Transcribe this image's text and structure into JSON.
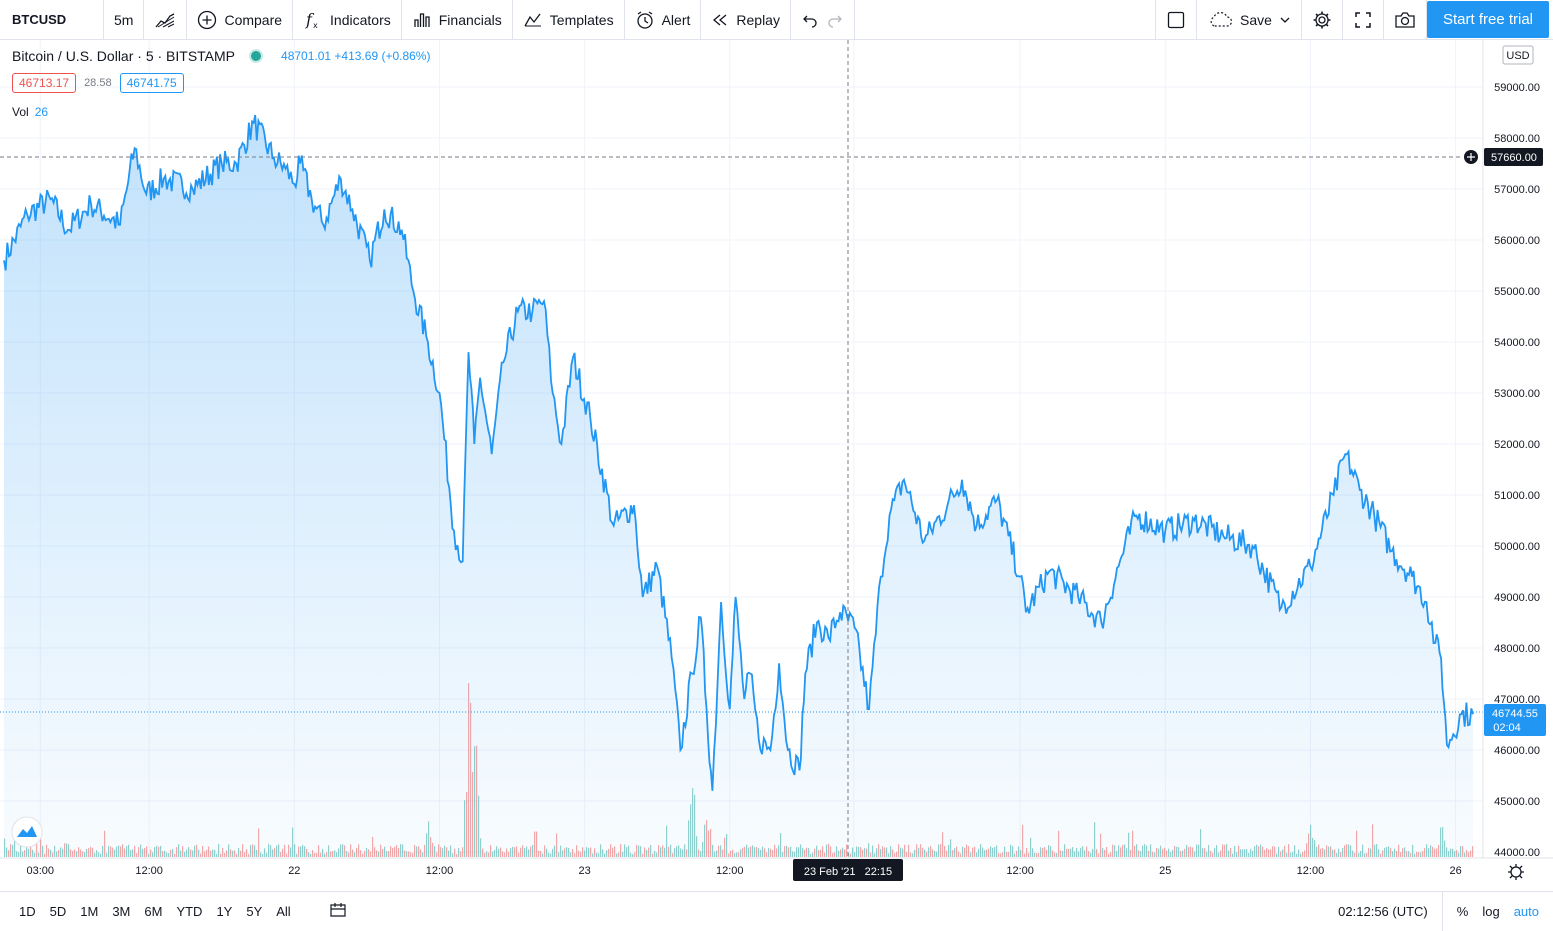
{
  "toolbar": {
    "symbol": "BTCUSD",
    "interval": "5m",
    "compare_label": "Compare",
    "indicators_label": "Indicators",
    "financials_label": "Financials",
    "templates_label": "Templates",
    "alert_label": "Alert",
    "replay_label": "Replay",
    "save_label": "Save",
    "trial_label": "Start free trial"
  },
  "legend": {
    "title": "Bitcoin / U.S. Dollar · 5 · BITSTAMP",
    "last_quote": "48701.01 +413.69 (+0.86%)",
    "bid": "46713.17",
    "spread": "28.58",
    "ask": "46741.75",
    "vol_label": "Vol",
    "vol_value": "26"
  },
  "price_axis": {
    "currency": "USD",
    "crosshair_price": "57660.00",
    "last_price": "46744.55",
    "countdown": "02:04"
  },
  "time_axis": {
    "crosshair_time": "23 Feb '21   22:15"
  },
  "bottom": {
    "ranges": [
      "1D",
      "5D",
      "1M",
      "3M",
      "6M",
      "YTD",
      "1Y",
      "5Y",
      "All"
    ],
    "clock": "02:12:56 (UTC)",
    "percent_label": "%",
    "log_label": "log",
    "auto_label": "auto"
  },
  "colors": {
    "line": "#2196f3",
    "vol_up": "#26a69a",
    "vol_down": "#ef5350",
    "accent": "#2196f3"
  },
  "chart_data": {
    "type": "area",
    "symbol": "BTCUSD",
    "exchange": "BITSTAMP",
    "interval": "5",
    "ylim": [
      44000,
      59300
    ],
    "y_ticks": [
      44000,
      45000,
      46000,
      47000,
      48000,
      49000,
      50000,
      51000,
      52000,
      53000,
      54000,
      55000,
      56000,
      57000,
      58000,
      59000
    ],
    "x_ticks": [
      "03:00",
      "12:00",
      "22",
      "12:00",
      "23",
      "12:00",
      "23 Feb '21",
      "12:00",
      "25",
      "12:00",
      "26"
    ],
    "x_tick_days": [
      0.125,
      0.5,
      1,
      1.5,
      2,
      2.5,
      2.927,
      3.5,
      4,
      4.5,
      5
    ],
    "x": [
      0,
      0.08,
      0.16,
      0.22,
      0.3,
      0.4,
      0.45,
      0.49,
      0.55,
      0.65,
      0.75,
      0.8,
      0.86,
      0.93,
      0.97,
      1.0,
      1.02,
      1.06,
      1.1,
      1.16,
      1.2,
      1.26,
      1.31,
      1.37,
      1.41,
      1.46,
      1.5,
      1.55,
      1.58,
      1.6,
      1.62,
      1.64,
      1.68,
      1.72,
      1.77,
      1.82,
      1.86,
      1.89,
      1.92,
      1.96,
      2.02,
      2.1,
      2.17,
      2.2,
      2.25,
      2.3,
      2.33,
      2.37,
      2.4,
      2.42,
      2.44,
      2.47,
      2.5,
      2.52,
      2.55,
      2.57,
      2.6,
      2.64,
      2.67,
      2.7,
      2.74,
      2.76,
      2.8,
      2.84,
      2.88,
      2.93,
      2.98,
      3.02,
      3.05,
      3.1,
      3.17,
      3.25,
      3.3,
      3.35,
      3.42,
      3.5,
      3.52,
      3.6,
      3.7,
      3.78,
      3.85,
      3.9,
      4.0,
      4.1,
      4.2,
      4.3,
      4.4,
      4.5,
      4.58,
      4.62,
      4.67,
      4.72,
      4.78,
      4.85,
      4.9,
      4.93,
      4.95,
      4.97,
      5.02,
      5.06
    ],
    "values": [
      55600,
      56500,
      56800,
      56200,
      56700,
      56300,
      57800,
      56900,
      57200,
      57000,
      57500,
      57500,
      58300,
      57600,
      57400,
      57100,
      57500,
      56800,
      56300,
      57200,
      56600,
      55600,
      56600,
      56200,
      55000,
      54000,
      53000,
      50300,
      49700,
      53800,
      52000,
      53300,
      51800,
      53600,
      54600,
      54600,
      54800,
      53000,
      52000,
      53700,
      52500,
      50400,
      50800,
      49000,
      49600,
      47800,
      46000,
      47500,
      48600,
      46800,
      45200,
      48900,
      46800,
      49000,
      47000,
      47500,
      46200,
      46000,
      47700,
      46000,
      45600,
      47500,
      48500,
      48200,
      48700,
      48400,
      46800,
      49400,
      50600,
      51300,
      50100,
      50800,
      51300,
      50400,
      50900,
      49400,
      48700,
      49500,
      49000,
      48500,
      49800,
      50600,
      50300,
      50500,
      50200,
      50000,
      48800,
      49600,
      51000,
      51800,
      51100,
      50600,
      49900,
      49400,
      48900,
      48100,
      47800,
      46100,
      46700,
      46700
    ],
    "volume_note": "volume histogram, larger spikes near 22 Feb 13:00 and 23 Feb 09:00"
  }
}
